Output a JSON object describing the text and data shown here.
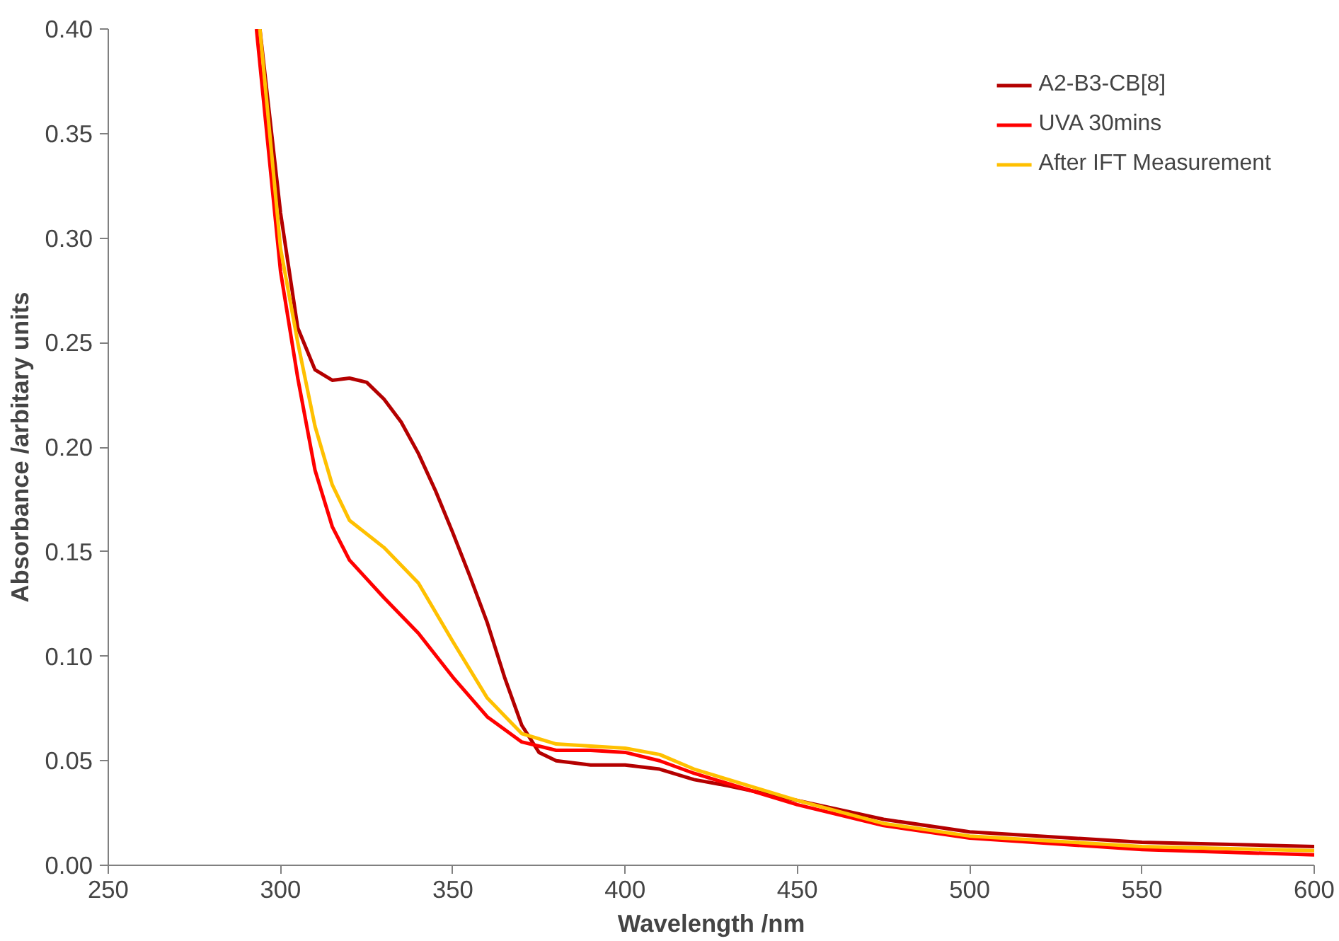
{
  "chart_data": {
    "type": "line",
    "xlabel": "Wavelength /nm",
    "ylabel": "Absorbance /arbitary units",
    "xlim": [
      250,
      600
    ],
    "ylim": [
      0,
      0.4
    ],
    "xticks": [
      250,
      300,
      350,
      400,
      450,
      500,
      550,
      600
    ],
    "yticks": [
      {
        "value": 0,
        "label": "0.00"
      },
      {
        "value": 0.05,
        "label": "0.05"
      },
      {
        "value": 0.1,
        "label": "0.10"
      },
      {
        "value": 0.15,
        "label": "0.15"
      },
      {
        "value": 0.2,
        "label": "0.20"
      },
      {
        "value": 0.25,
        "label": "0.25"
      },
      {
        "value": 0.3,
        "label": "0.30"
      },
      {
        "value": 0.35,
        "label": "0.35"
      },
      {
        "value": 0.4,
        "label": "0.40"
      }
    ],
    "grid": false,
    "legend": "top right",
    "line_style": "solid",
    "marker": "none",
    "series": [
      {
        "name": "A2-B3-CB[8]",
        "color": "#b40000",
        "x": [
          294,
          300,
          305,
          310,
          315,
          320,
          325,
          330,
          335,
          340,
          345,
          350,
          355,
          360,
          365,
          370,
          375,
          380,
          390,
          400,
          410,
          420,
          430,
          450,
          475,
          500,
          550,
          600
        ],
        "values": [
          0.4,
          0.312,
          0.257,
          0.237,
          0.232,
          0.233,
          0.231,
          0.223,
          0.212,
          0.197,
          0.179,
          0.159,
          0.138,
          0.116,
          0.09,
          0.067,
          0.054,
          0.05,
          0.048,
          0.048,
          0.046,
          0.041,
          0.038,
          0.031,
          0.022,
          0.016,
          0.011,
          0.009
        ]
      },
      {
        "name": "UVA 30mins",
        "color": "#ff0000",
        "x": [
          293,
          300,
          305,
          310,
          315,
          320,
          330,
          340,
          350,
          360,
          370,
          380,
          390,
          400,
          410,
          420,
          430,
          450,
          475,
          500,
          550,
          600
        ],
        "values": [
          0.4,
          0.284,
          0.233,
          0.189,
          0.162,
          0.146,
          0.128,
          0.111,
          0.09,
          0.071,
          0.059,
          0.055,
          0.055,
          0.054,
          0.05,
          0.044,
          0.039,
          0.029,
          0.019,
          0.013,
          0.0075,
          0.005
        ]
      },
      {
        "name": "After IFT Measurement",
        "color": "#ffc000",
        "x": [
          294,
          300,
          305,
          310,
          315,
          320,
          330,
          340,
          350,
          360,
          370,
          380,
          390,
          400,
          410,
          420,
          430,
          450,
          475,
          500,
          550,
          600
        ],
        "values": [
          0.4,
          0.295,
          0.25,
          0.21,
          0.182,
          0.165,
          0.152,
          0.135,
          0.107,
          0.08,
          0.063,
          0.058,
          0.057,
          0.056,
          0.053,
          0.046,
          0.041,
          0.031,
          0.02,
          0.014,
          0.009,
          0.007
        ]
      }
    ]
  }
}
